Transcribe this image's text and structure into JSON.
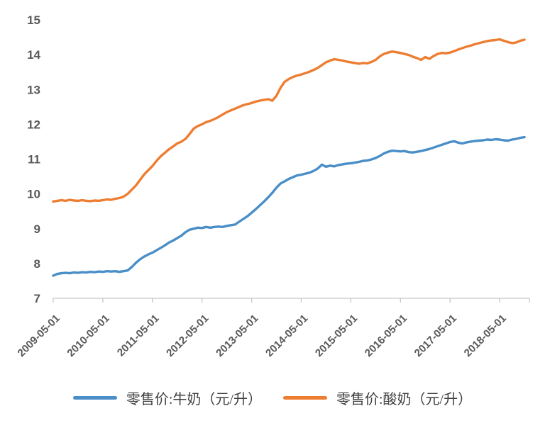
{
  "chart_data": {
    "type": "line",
    "title": "",
    "xlabel": "",
    "ylabel": "",
    "ylim": [
      7,
      15
    ],
    "y_ticks": [
      15,
      14,
      13,
      12,
      11,
      10,
      9,
      8,
      7
    ],
    "x_tick_labels": [
      "2009-05-01",
      "2010-05-01",
      "2011-05-01",
      "2012-05-01",
      "2013-05-01",
      "2014-05-01",
      "2015-05-01",
      "2016-05-01",
      "2017-05-01",
      "2018-05-01"
    ],
    "x_start_month": "2009-05",
    "x_end_month": "2018-11",
    "x_resolution": "monthly",
    "grid": false,
    "legend_position": "bottom",
    "axis_color": "#c6c6c6",
    "tick_label_color": "#595959",
    "series": [
      {
        "name": "零售价:牛奶（元/升）",
        "color": "#4A8EC8",
        "values": [
          7.65,
          7.7,
          7.72,
          7.73,
          7.72,
          7.74,
          7.73,
          7.75,
          7.74,
          7.76,
          7.75,
          7.77,
          7.76,
          7.78,
          7.77,
          7.78,
          7.76,
          7.78,
          7.8,
          7.9,
          8.02,
          8.12,
          8.2,
          8.26,
          8.31,
          8.38,
          8.45,
          8.52,
          8.6,
          8.66,
          8.73,
          8.8,
          8.9,
          8.97,
          9.0,
          9.03,
          9.02,
          9.05,
          9.03,
          9.05,
          9.06,
          9.05,
          9.08,
          9.1,
          9.12,
          9.2,
          9.28,
          9.36,
          9.46,
          9.56,
          9.67,
          9.78,
          9.9,
          10.03,
          10.18,
          10.3,
          10.36,
          10.43,
          10.48,
          10.53,
          10.55,
          10.58,
          10.61,
          10.66,
          10.73,
          10.84,
          10.78,
          10.81,
          10.79,
          10.83,
          10.85,
          10.87,
          10.88,
          10.9,
          10.92,
          10.95,
          10.96,
          10.99,
          11.03,
          11.09,
          11.16,
          11.21,
          11.24,
          11.23,
          11.22,
          11.23,
          11.2,
          11.19,
          11.21,
          11.23,
          11.26,
          11.29,
          11.33,
          11.37,
          11.41,
          11.45,
          11.49,
          11.51,
          11.47,
          11.45,
          11.48,
          11.5,
          11.52,
          11.53,
          11.54,
          11.56,
          11.55,
          11.57,
          11.56,
          11.54,
          11.53,
          11.56,
          11.58,
          11.61,
          11.63
        ]
      },
      {
        "name": "零售价:酸奶（元/升）",
        "color": "#ED7D31",
        "values": [
          9.78,
          9.8,
          9.82,
          9.8,
          9.83,
          9.81,
          9.8,
          9.82,
          9.8,
          9.79,
          9.81,
          9.8,
          9.82,
          9.84,
          9.83,
          9.86,
          9.88,
          9.92,
          10.0,
          10.12,
          10.24,
          10.4,
          10.56,
          10.68,
          10.8,
          10.95,
          11.08,
          11.18,
          11.28,
          11.36,
          11.45,
          11.5,
          11.58,
          11.72,
          11.88,
          11.95,
          12.0,
          12.06,
          12.1,
          12.15,
          12.21,
          12.28,
          12.35,
          12.4,
          12.45,
          12.5,
          12.55,
          12.58,
          12.61,
          12.65,
          12.68,
          12.7,
          12.72,
          12.68,
          12.82,
          13.05,
          13.22,
          13.3,
          13.36,
          13.4,
          13.43,
          13.47,
          13.51,
          13.56,
          13.62,
          13.7,
          13.78,
          13.83,
          13.87,
          13.85,
          13.83,
          13.8,
          13.78,
          13.76,
          13.74,
          13.76,
          13.75,
          13.79,
          13.85,
          13.95,
          14.02,
          14.06,
          14.09,
          14.07,
          14.05,
          14.02,
          13.99,
          13.94,
          13.9,
          13.85,
          13.93,
          13.88,
          13.96,
          14.02,
          14.05,
          14.04,
          14.06,
          14.1,
          14.15,
          14.19,
          14.23,
          14.26,
          14.3,
          14.33,
          14.36,
          14.39,
          14.41,
          14.42,
          14.44,
          14.4,
          14.36,
          14.33,
          14.35,
          14.4,
          14.43
        ]
      }
    ]
  }
}
